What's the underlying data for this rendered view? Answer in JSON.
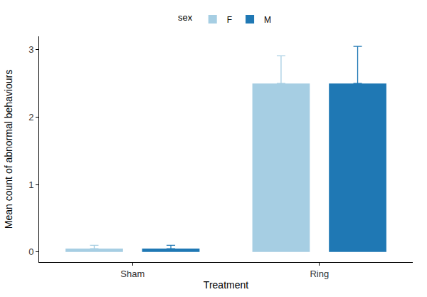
{
  "chart_data": {
    "type": "bar",
    "x_label": "Treatment",
    "y_label": "Mean count of abnormal behaviours",
    "legend_title": "sex",
    "legend": "top",
    "categories": [
      "Sham",
      "Ring"
    ],
    "series": [
      {
        "name": "F",
        "color": "#a6cee3",
        "values": [
          0.05,
          2.5
        ],
        "error": [
          0.05,
          0.41
        ]
      },
      {
        "name": "M",
        "color": "#1f78b4",
        "values": [
          0.05,
          2.5
        ],
        "error": [
          0.05,
          0.55
        ]
      }
    ],
    "ylim": [
      -0.15,
      3.2
    ],
    "yticks": [
      0,
      1,
      2,
      3
    ],
    "grid": false
  }
}
